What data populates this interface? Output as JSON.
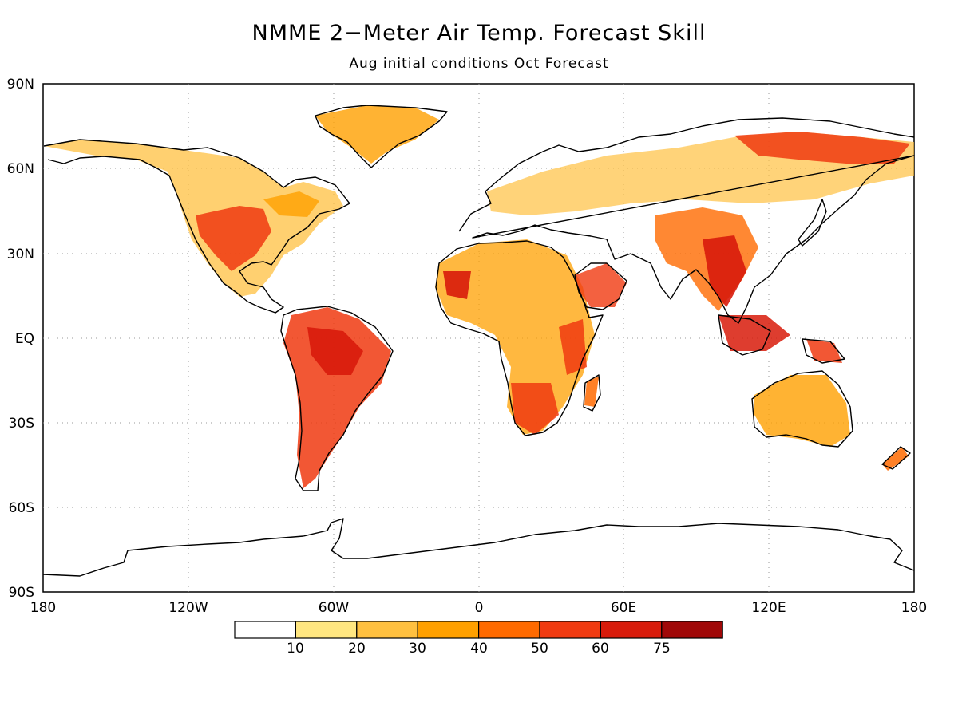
{
  "title": "NMME 2−Meter Air Temp. Forecast Skill",
  "subtitle": "Aug initial conditions   Oct Forecast",
  "map": {
    "lat_labels": [
      "90N",
      "60N",
      "30N",
      "EQ",
      "30S",
      "60S",
      "90S"
    ],
    "lon_labels": [
      "180",
      "120W",
      "60W",
      "0",
      "60E",
      "120E",
      "180"
    ],
    "grid": "dotted"
  },
  "legend": {
    "tick_labels": [
      "10",
      "20",
      "30",
      "40",
      "50",
      "60",
      "75"
    ],
    "colors": [
      "#ffffff",
      "#ffe680",
      "#ffc040",
      "#ffa000",
      "#ff6a00",
      "#f03a10",
      "#d81b0b",
      "#a00808"
    ]
  }
}
